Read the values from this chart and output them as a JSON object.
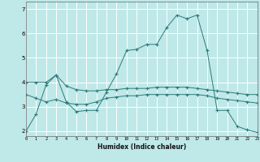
{
  "title": "",
  "xlabel": "Humidex (Indice chaleur)",
  "bg_color": "#bfe8e8",
  "grid_color": "#ffffff",
  "line_color": "#2d7a7a",
  "x_ticks": [
    0,
    1,
    2,
    3,
    4,
    5,
    6,
    7,
    8,
    9,
    10,
    11,
    12,
    13,
    14,
    15,
    16,
    17,
    18,
    19,
    20,
    21,
    22,
    23
  ],
  "y_ticks": [
    2,
    3,
    4,
    5,
    6,
    7
  ],
  "xlim": [
    0,
    23
  ],
  "ylim": [
    1.8,
    7.3
  ],
  "line1_x": [
    0,
    1,
    2,
    3,
    4,
    5,
    6,
    7,
    8,
    9,
    10,
    11,
    12,
    13,
    14,
    15,
    16,
    17,
    18,
    19,
    20,
    21,
    22,
    23
  ],
  "line1_y": [
    2.0,
    2.7,
    3.9,
    4.3,
    3.2,
    2.8,
    2.85,
    2.85,
    3.6,
    4.35,
    5.3,
    5.35,
    5.55,
    5.55,
    6.25,
    6.75,
    6.6,
    6.75,
    5.3,
    2.85,
    2.85,
    2.2,
    2.05,
    1.95
  ],
  "line2_x": [
    0,
    1,
    2,
    3,
    4,
    5,
    6,
    7,
    8,
    9,
    10,
    11,
    12,
    13,
    14,
    15,
    16,
    17,
    18,
    19,
    20,
    21,
    22,
    23
  ],
  "line2_y": [
    4.0,
    4.0,
    4.0,
    4.3,
    3.85,
    3.7,
    3.65,
    3.65,
    3.7,
    3.7,
    3.75,
    3.75,
    3.75,
    3.8,
    3.8,
    3.8,
    3.8,
    3.75,
    3.7,
    3.65,
    3.6,
    3.55,
    3.5,
    3.5
  ],
  "line3_x": [
    0,
    1,
    2,
    3,
    4,
    5,
    6,
    7,
    8,
    9,
    10,
    11,
    12,
    13,
    14,
    15,
    16,
    17,
    18,
    19,
    20,
    21,
    22,
    23
  ],
  "line3_y": [
    3.5,
    3.35,
    3.2,
    3.3,
    3.15,
    3.1,
    3.1,
    3.2,
    3.35,
    3.4,
    3.45,
    3.45,
    3.5,
    3.5,
    3.5,
    3.5,
    3.5,
    3.5,
    3.45,
    3.35,
    3.3,
    3.25,
    3.2,
    3.15
  ]
}
